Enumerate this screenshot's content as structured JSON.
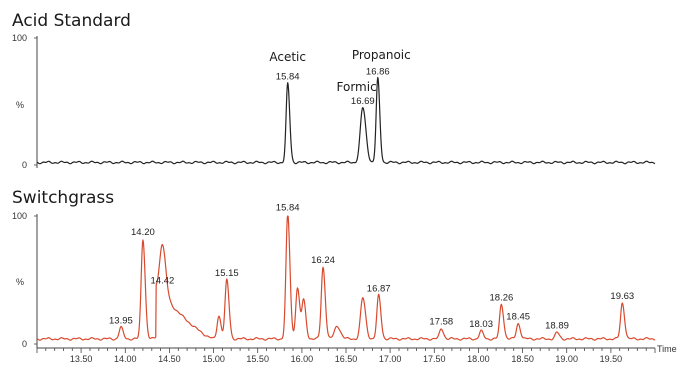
{
  "chart_data": [
    {
      "type": "line",
      "title": "Acid Standard",
      "y_tick_labels": [
        "100",
        "%",
        "0"
      ],
      "ylim": [
        0,
        100
      ],
      "xlim": [
        13.0,
        20.0
      ],
      "color": "#222222",
      "baseline": 2,
      "peaks": [
        {
          "x": 15.84,
          "y": 62,
          "w": 0.018,
          "label": "15.84"
        },
        {
          "x": 16.69,
          "y": 43,
          "w": 0.028,
          "label": "16.69"
        },
        {
          "x": 16.86,
          "y": 66,
          "w": 0.018,
          "label": "16.86"
        }
      ],
      "annotations": [
        {
          "text": "Acetic",
          "x": 15.84
        },
        {
          "text": "Formic",
          "x": 16.62
        },
        {
          "text": "Propanoic",
          "x": 16.9
        }
      ]
    },
    {
      "type": "line",
      "title": "Switchgrass",
      "y_tick_labels": [
        "100",
        "%",
        "0"
      ],
      "x_tick_labels": [
        "13.50",
        "14.00",
        "14.50",
        "15.00",
        "15.50",
        "16.00",
        "16.50",
        "17.00",
        "17.50",
        "18.00",
        "18.50",
        "19.00",
        "19.50"
      ],
      "xlabel": "Time",
      "ylim": [
        0,
        100
      ],
      "xlim": [
        13.0,
        20.0
      ],
      "color": "#d84a2e",
      "baseline": 4,
      "peaks": [
        {
          "x": 13.95,
          "y": 9,
          "w": 0.02,
          "label": "13.95"
        },
        {
          "x": 14.2,
          "y": 78,
          "w": 0.02,
          "label": "14.20"
        },
        {
          "x": 14.42,
          "y": 40,
          "w": 0.03,
          "label": "14.42"
        },
        {
          "x": 15.06,
          "y": 18,
          "w": 0.02
        },
        {
          "x": 15.15,
          "y": 46,
          "w": 0.02,
          "label": "15.15"
        },
        {
          "x": 15.84,
          "y": 97,
          "w": 0.02,
          "label": "15.84"
        },
        {
          "x": 15.95,
          "y": 40,
          "w": 0.02
        },
        {
          "x": 16.02,
          "y": 30,
          "w": 0.02
        },
        {
          "x": 16.24,
          "y": 56,
          "w": 0.02,
          "label": "16.24"
        },
        {
          "x": 16.4,
          "y": 10,
          "w": 0.03
        },
        {
          "x": 16.69,
          "y": 32,
          "w": 0.025
        },
        {
          "x": 16.87,
          "y": 34,
          "w": 0.02,
          "label": "16.87"
        },
        {
          "x": 17.58,
          "y": 8,
          "w": 0.02,
          "label": "17.58"
        },
        {
          "x": 18.03,
          "y": 6,
          "w": 0.02,
          "label": "18.03"
        },
        {
          "x": 18.26,
          "y": 27,
          "w": 0.02,
          "label": "18.26"
        },
        {
          "x": 18.45,
          "y": 12,
          "w": 0.02,
          "label": "18.45"
        },
        {
          "x": 18.89,
          "y": 5,
          "w": 0.02,
          "label": "18.89"
        },
        {
          "x": 19.63,
          "y": 28,
          "w": 0.02,
          "label": "19.63"
        }
      ],
      "broad_features": [
        {
          "x0": 14.35,
          "x1": 15.0,
          "y_start": 40,
          "y_end": 6
        }
      ]
    }
  ]
}
